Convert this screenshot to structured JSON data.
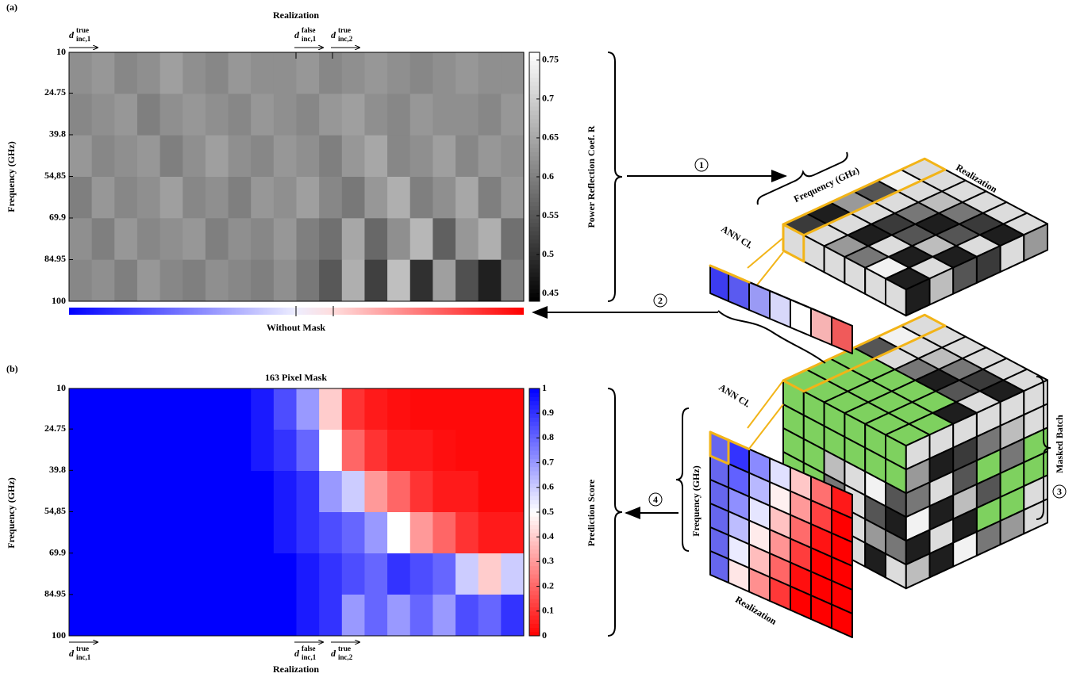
{
  "chart_data": [
    {
      "type": "heatmap",
      "panel_label": "(a)",
      "title": "Realization",
      "ylabel": "Frequency (GHz)",
      "ylim": [
        10,
        100
      ],
      "yticks": [
        10,
        24.75,
        39.8,
        {
          "value": 54.85,
          "label": "54,85"
        },
        69.9,
        84.95,
        100
      ],
      "colormap": "gray",
      "colorbar": {
        "label": "Power Reflection Coef. R",
        "lim": [
          0.44,
          0.76
        ],
        "ticks": [
          0.45,
          0.5,
          0.55,
          0.6,
          0.65,
          0.7,
          0.75
        ]
      },
      "strip_label": "Without Mask",
      "annotations": [
        {
          "symbol": "d",
          "sup": "true",
          "sub": "inc,1"
        },
        {
          "symbol": "d",
          "sup": "false",
          "sub": "inc,1"
        },
        {
          "symbol": "d",
          "sup": "true",
          "sub": "inc,2"
        }
      ],
      "values": [
        [
          0.62,
          0.63,
          0.61,
          0.62,
          0.64,
          0.62,
          0.61,
          0.63,
          0.62,
          0.62,
          0.63,
          0.61,
          0.62,
          0.63,
          0.62,
          0.61,
          0.62,
          0.63,
          0.62,
          0.62
        ],
        [
          0.61,
          0.62,
          0.63,
          0.6,
          0.62,
          0.63,
          0.62,
          0.61,
          0.63,
          0.62,
          0.61,
          0.63,
          0.64,
          0.62,
          0.61,
          0.63,
          0.62,
          0.62,
          0.61,
          0.63
        ],
        [
          0.63,
          0.61,
          0.62,
          0.63,
          0.6,
          0.62,
          0.64,
          0.62,
          0.61,
          0.63,
          0.62,
          0.6,
          0.63,
          0.65,
          0.61,
          0.62,
          0.64,
          0.61,
          0.63,
          0.62
        ],
        [
          0.6,
          0.63,
          0.61,
          0.62,
          0.64,
          0.61,
          0.62,
          0.6,
          0.63,
          0.62,
          0.64,
          0.61,
          0.59,
          0.63,
          0.66,
          0.6,
          0.62,
          0.65,
          0.6,
          0.63
        ],
        [
          0.62,
          0.6,
          0.63,
          0.61,
          0.62,
          0.63,
          0.6,
          0.62,
          0.61,
          0.63,
          0.6,
          0.58,
          0.65,
          0.57,
          0.62,
          0.67,
          0.56,
          0.63,
          0.66,
          0.58
        ],
        [
          0.61,
          0.62,
          0.6,
          0.63,
          0.61,
          0.6,
          0.62,
          0.61,
          0.6,
          0.62,
          0.59,
          0.55,
          0.66,
          0.52,
          0.68,
          0.5,
          0.64,
          0.54,
          0.48,
          0.6
        ]
      ]
    },
    {
      "type": "heatmap",
      "panel_label": "(b)",
      "title": "163 Pixel Mask",
      "xlabel": "Realization",
      "ylabel": "Frequency (GHz)",
      "ylim": [
        10,
        100
      ],
      "yticks": [
        10,
        24.75,
        39.8,
        {
          "value": 54.85,
          "label": "54,85"
        },
        69.9,
        84.95,
        100
      ],
      "colormap": "bwr",
      "colorbar": {
        "label": "Prediction Score",
        "lim": [
          0,
          1
        ],
        "ticks": [
          0,
          0.1,
          0.2,
          0.3,
          0.4,
          0.5,
          0.6,
          0.7,
          0.8,
          0.9,
          1
        ]
      },
      "annotations": [
        {
          "symbol": "d",
          "sup": "true",
          "sub": "inc,1"
        },
        {
          "symbol": "d",
          "sup": "false",
          "sub": "inc,1"
        },
        {
          "symbol": "d",
          "sup": "true",
          "sub": "inc,2"
        }
      ],
      "values": [
        [
          1,
          1,
          1,
          1,
          1,
          1,
          1,
          1,
          0.95,
          0.85,
          0.7,
          0.4,
          0.1,
          0.05,
          0.03,
          0.02,
          0.02,
          0.02,
          0.02,
          0.02
        ],
        [
          1,
          1,
          1,
          1,
          1,
          1,
          1,
          1,
          0.95,
          0.9,
          0.8,
          0.5,
          0.2,
          0.1,
          0.05,
          0.05,
          0.03,
          0.02,
          0.02,
          0.02
        ],
        [
          1,
          1,
          1,
          1,
          1,
          1,
          1,
          1,
          1,
          0.95,
          0.9,
          0.7,
          0.6,
          0.3,
          0.2,
          0.1,
          0.05,
          0.05,
          0.02,
          0.02
        ],
        [
          1,
          1,
          1,
          1,
          1,
          1,
          1,
          1,
          1,
          0.95,
          0.9,
          0.85,
          0.8,
          0.7,
          0.5,
          0.3,
          0.2,
          0.1,
          0.05,
          0.05
        ],
        [
          1,
          1,
          1,
          1,
          1,
          1,
          1,
          1,
          1,
          1,
          0.95,
          0.9,
          0.85,
          0.8,
          0.9,
          0.85,
          0.8,
          0.6,
          0.4,
          0.6
        ],
        [
          1,
          1,
          1,
          1,
          1,
          1,
          1,
          1,
          1,
          1,
          0.95,
          0.9,
          0.7,
          0.8,
          0.7,
          0.8,
          0.7,
          0.85,
          0.8,
          0.9
        ]
      ]
    }
  ],
  "diagram": {
    "steps": [
      "1",
      "2",
      "3",
      "4"
    ],
    "frequency_label": "Frequency (GHz)",
    "realization_label": "Realization",
    "classifier_label": "ANN Cl.",
    "batch_label": "Masked Batch"
  }
}
